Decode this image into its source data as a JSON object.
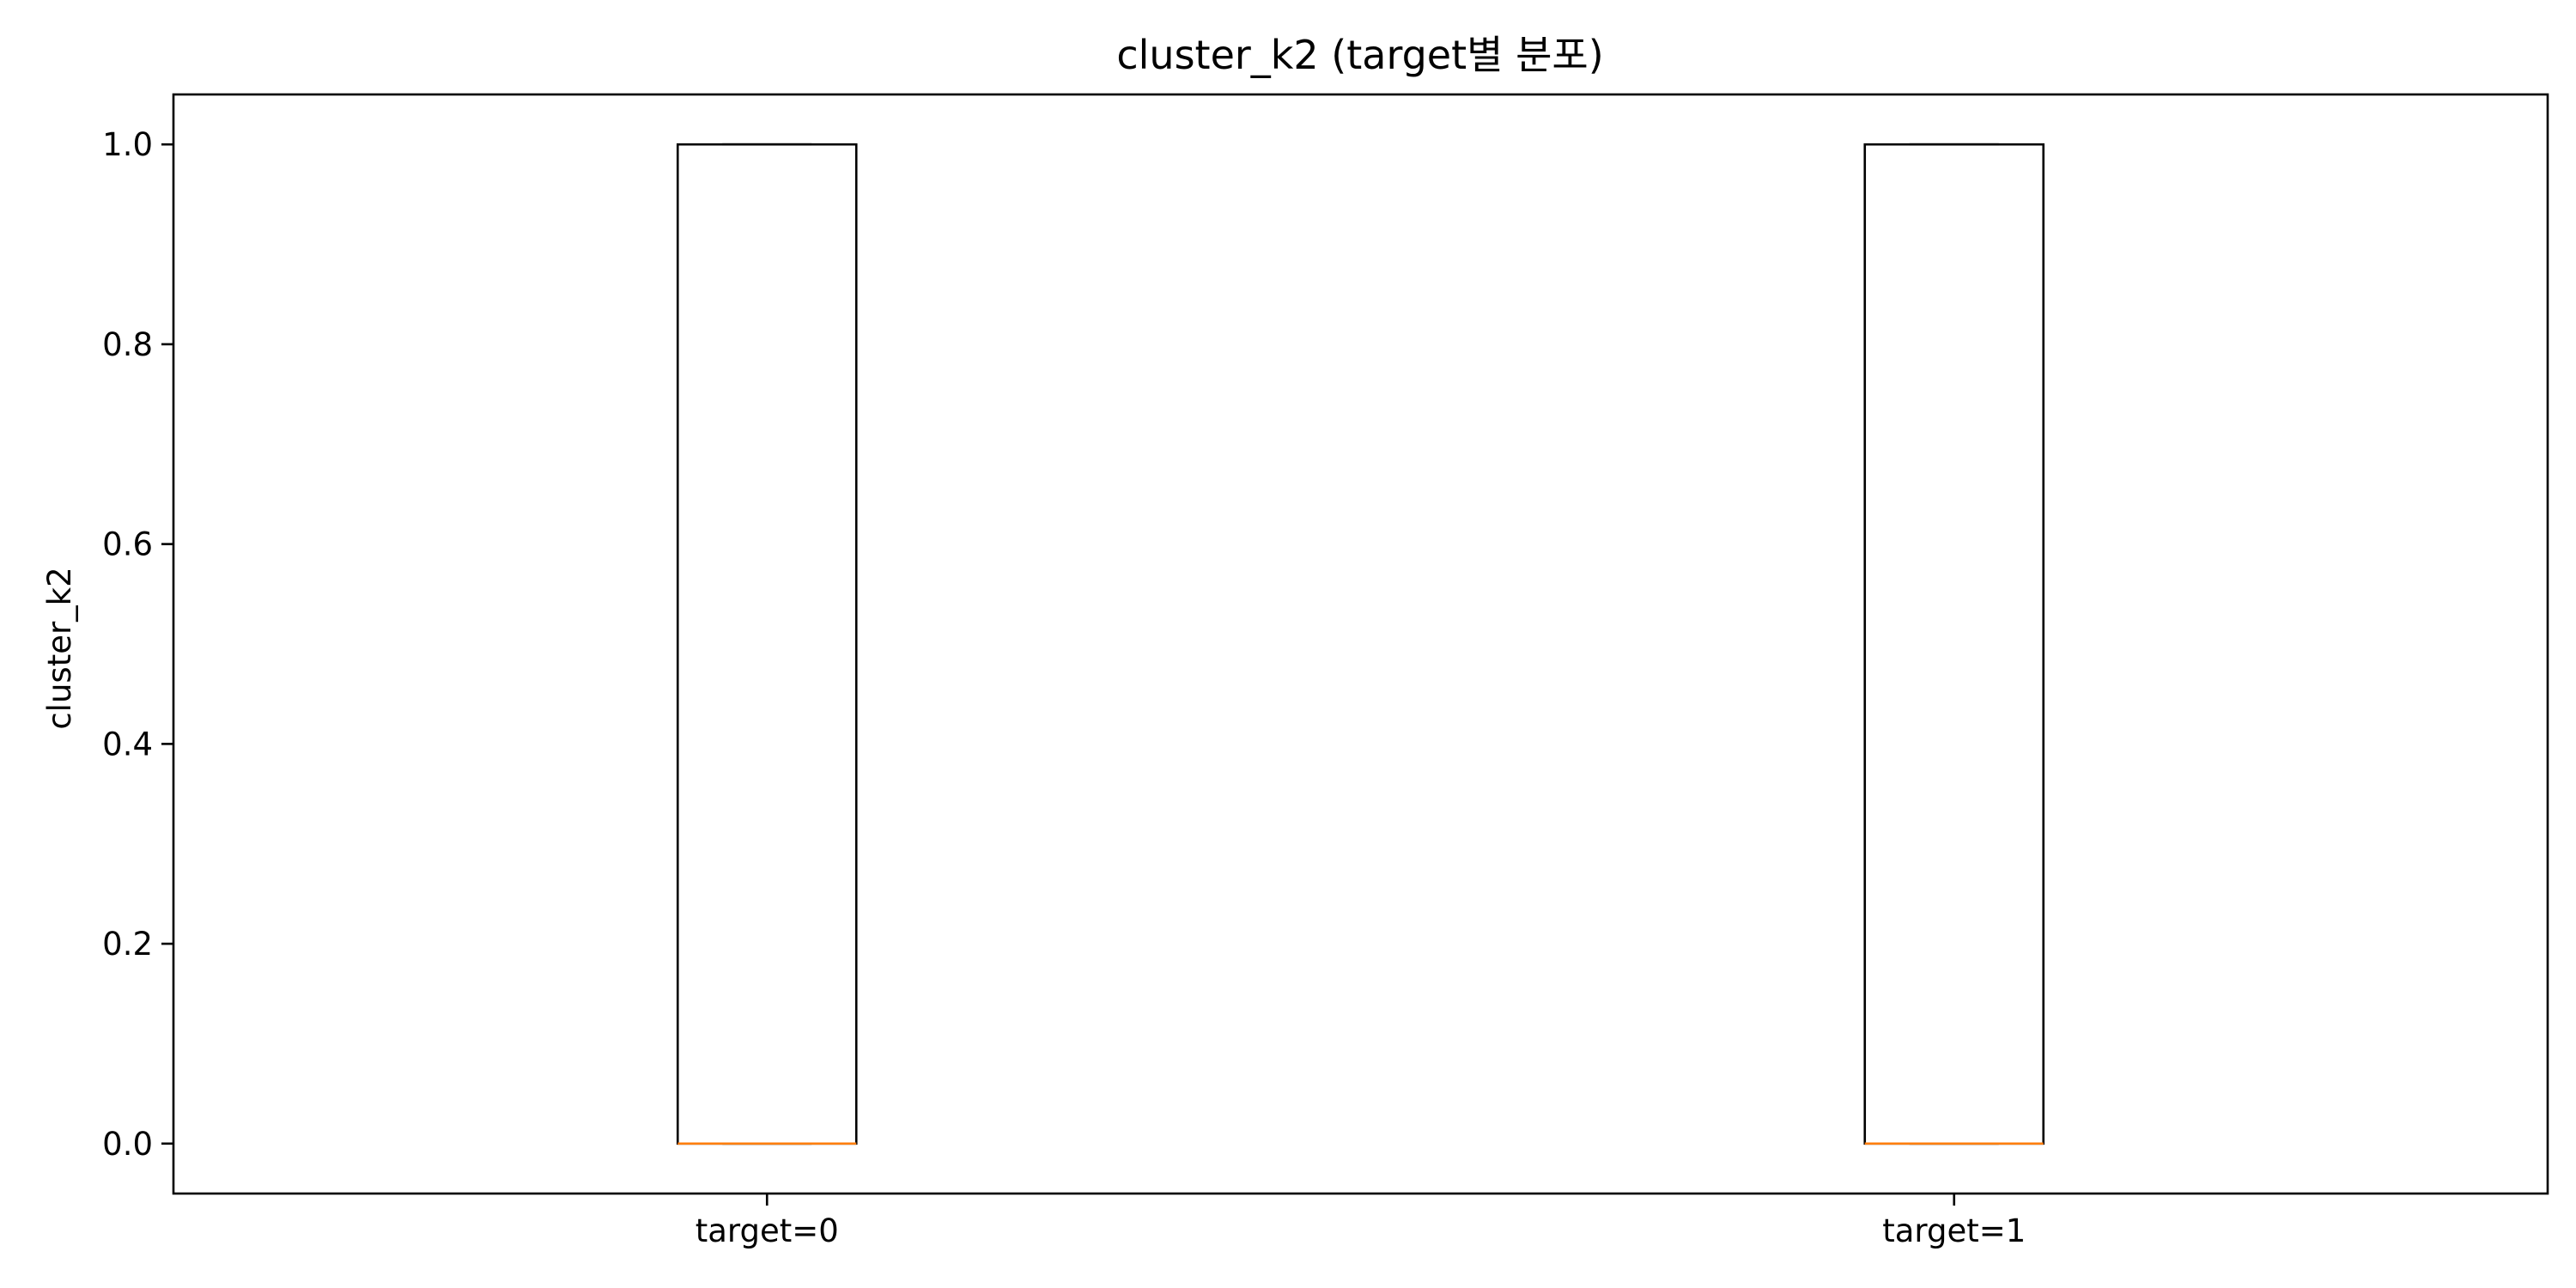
{
  "chart_data": {
    "type": "box",
    "title": "cluster_k2 (target별 분포)",
    "xlabel": "",
    "ylabel": "cluster_k2",
    "categories": [
      "target=0",
      "target=1"
    ],
    "boxes": [
      {
        "category": "target=0",
        "whisker_low": 0.0,
        "q1": 0.0,
        "median": 0.0,
        "q3": 1.0,
        "whisker_high": 1.0
      },
      {
        "category": "target=1",
        "whisker_low": 0.0,
        "q1": 0.0,
        "median": 0.0,
        "q3": 1.0,
        "whisker_high": 1.0
      }
    ],
    "ylim": [
      -0.05,
      1.05
    ],
    "yticks": [
      0.0,
      0.2,
      0.4,
      0.6,
      0.8,
      1.0
    ],
    "ytick_labels": [
      "0.0",
      "0.2",
      "0.4",
      "0.6",
      "0.8",
      "1.0"
    ],
    "grid": false,
    "colors": {
      "box_edge": "#000000",
      "median": "#ff7f0e",
      "axes": "#000000"
    }
  }
}
